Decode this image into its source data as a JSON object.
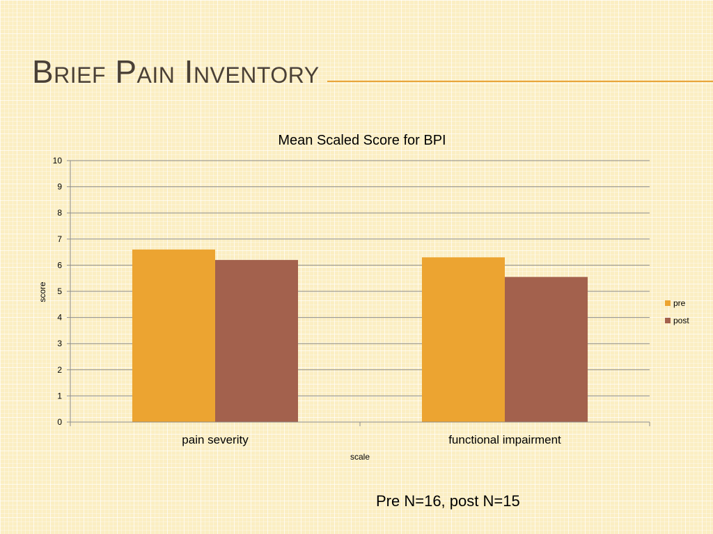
{
  "slide": {
    "title": "Brief Pain Inventory",
    "footnote": "Pre N=16, post N=15"
  },
  "chart_data": {
    "type": "bar",
    "title": "Mean Scaled Score for BPI",
    "xlabel": "scale",
    "ylabel": "score",
    "categories": [
      "pain severity",
      "functional impairment"
    ],
    "series": [
      {
        "name": "pre",
        "values": [
          6.6,
          6.3
        ],
        "color": "#eca431"
      },
      {
        "name": "post",
        "values": [
          6.2,
          5.55
        ],
        "color": "#a3614d"
      }
    ],
    "ylim": [
      0,
      10
    ],
    "yticks": [
      0,
      1,
      2,
      3,
      4,
      5,
      6,
      7,
      8,
      9,
      10
    ],
    "grid": true,
    "legend": "right"
  }
}
